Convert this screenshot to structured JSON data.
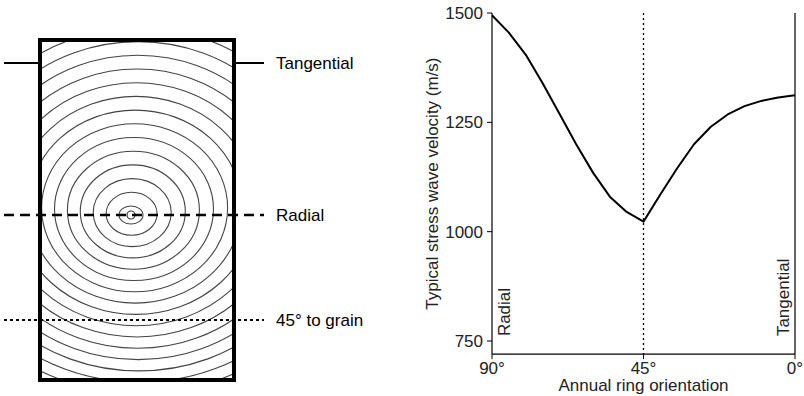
{
  "chart_data": {
    "type": "line",
    "xlabel": "Annual ring orientation",
    "ylabel": "Typical stress wave velocity (m/s)",
    "x": [
      90,
      85,
      80,
      75,
      70,
      65,
      60,
      55,
      50,
      45,
      40,
      35,
      30,
      25,
      20,
      15,
      10,
      5,
      0
    ],
    "series": [
      {
        "color": "#000000",
        "line_style": "solid",
        "values": [
          1495,
          1455,
          1405,
          1340,
          1270,
          1200,
          1135,
          1080,
          1045,
          1023,
          1085,
          1145,
          1200,
          1240,
          1268,
          1287,
          1299,
          1307,
          1312
        ]
      }
    ],
    "xlim": [
      90,
      0
    ],
    "xticks": [
      {
        "value": 90,
        "label": "90°"
      },
      {
        "value": 45,
        "label": "45°"
      },
      {
        "value": 0,
        "label": "0°"
      }
    ],
    "ylim": [
      720,
      1500
    ],
    "yticks": [
      750,
      1000,
      1250,
      1500
    ],
    "grid": false,
    "reference_lines": [
      {
        "x": 45,
        "line_style": "dotted"
      }
    ],
    "annotations": [
      {
        "text": "Radial",
        "x": 90
      },
      {
        "text": "Tangential",
        "x": 0
      }
    ]
  },
  "diagram": {
    "labels": [
      "Tangential",
      "Radial",
      "45° to grain"
    ]
  }
}
